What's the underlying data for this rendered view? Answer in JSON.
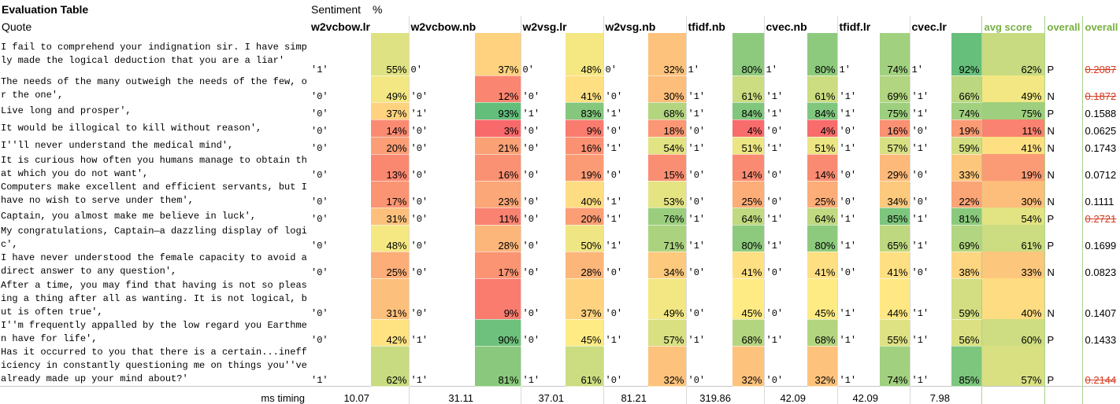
{
  "title": "Evaluation Table",
  "subheader": {
    "sentiment": "Sentiment",
    "percent": "%",
    "quote": "Quote"
  },
  "models": [
    "w2vcbow.lr",
    "w2vcbow.nb",
    "w2vsg.lr",
    "w2vsg.nb",
    "tfidf.nb",
    "cvec.nb",
    "tfidf.lr",
    "cvec.lr"
  ],
  "summary_headers": {
    "avg": "avg score",
    "overall_label": "overall",
    "overall_score": "overall"
  },
  "rows": [
    {
      "quote": "I fail to comprehend your indignation sir. I have simply made the logical deduction that you are a liar'",
      "cells": [
        [
          "'1'",
          "55%"
        ],
        [
          "0'",
          "37%"
        ],
        [
          "0'",
          "48%"
        ],
        [
          "0'",
          "32%"
        ],
        [
          "1'",
          "80%"
        ],
        [
          "1'",
          "80%"
        ],
        [
          "1'",
          "74%"
        ],
        [
          "1'",
          "92%"
        ]
      ],
      "avg": "62%",
      "overall": "P",
      "score": "0.2087",
      "red": true
    },
    {
      "quote": "The needs of the many outweigh the needs of the few, or the one',",
      "cells": [
        [
          "'0'",
          "49%"
        ],
        [
          "'0'",
          "12%"
        ],
        [
          "'0'",
          "41%"
        ],
        [
          "'0'",
          "30%"
        ],
        [
          "'1'",
          "61%"
        ],
        [
          "'1'",
          "61%"
        ],
        [
          "'1'",
          "69%"
        ],
        [
          "'1'",
          "66%"
        ]
      ],
      "avg": "49%",
      "overall": "N",
      "score": "0.1872",
      "red": true
    },
    {
      "quote": "Live long and prosper',",
      "cells": [
        [
          "'0'",
          "37%"
        ],
        [
          "'1'",
          "93%"
        ],
        [
          "'1'",
          "83%"
        ],
        [
          "'1'",
          "68%"
        ],
        [
          "'1'",
          "84%"
        ],
        [
          "'1'",
          "84%"
        ],
        [
          "'1'",
          "75%"
        ],
        [
          "'1'",
          "74%"
        ]
      ],
      "avg": "75%",
      "overall": "P",
      "score": "0.1588",
      "red": false
    },
    {
      "quote": "It would be illogical to kill without reason',",
      "cells": [
        [
          "'0'",
          "14%"
        ],
        [
          "'0'",
          "3%"
        ],
        [
          "'0'",
          "9%"
        ],
        [
          "'0'",
          "18%"
        ],
        [
          "'0'",
          "4%"
        ],
        [
          "'0'",
          "4%"
        ],
        [
          "'0'",
          "16%"
        ],
        [
          "'0'",
          "19%"
        ]
      ],
      "avg": "11%",
      "overall": "N",
      "score": "0.0625",
      "red": false
    },
    {
      "quote": "I''ll never understand the medical mind',",
      "cells": [
        [
          "'0'",
          "20%"
        ],
        [
          "'0'",
          "21%"
        ],
        [
          "'0'",
          "16%"
        ],
        [
          "'1'",
          "54%"
        ],
        [
          "'1'",
          "51%"
        ],
        [
          "'1'",
          "51%"
        ],
        [
          "'1'",
          "57%"
        ],
        [
          "'1'",
          "59%"
        ]
      ],
      "avg": "41%",
      "overall": "N",
      "score": "0.1743",
      "red": false
    },
    {
      "quote": "It is curious how often you humans manage to obtain that which you do not want',",
      "cells": [
        [
          "'0'",
          "13%"
        ],
        [
          "'0'",
          "16%"
        ],
        [
          "'0'",
          "19%"
        ],
        [
          "'0'",
          "15%"
        ],
        [
          "'0'",
          "14%"
        ],
        [
          "'0'",
          "14%"
        ],
        [
          "'0'",
          "29%"
        ],
        [
          "'0'",
          "33%"
        ]
      ],
      "avg": "19%",
      "overall": "N",
      "score": "0.0712",
      "red": false
    },
    {
      "quote": "Computers make excellent and efficient servants, but I have no wish to serve under them',",
      "cells": [
        [
          "'0'",
          "17%"
        ],
        [
          "'0'",
          "23%"
        ],
        [
          "'0'",
          "40%"
        ],
        [
          "'1'",
          "53%"
        ],
        [
          "'0'",
          "25%"
        ],
        [
          "'0'",
          "25%"
        ],
        [
          "'0'",
          "34%"
        ],
        [
          "'0'",
          "22%"
        ]
      ],
      "avg": "30%",
      "overall": "N",
      "score": "0.1111",
      "red": false
    },
    {
      "quote": "Captain, you almost make me believe in luck',",
      "cells": [
        [
          "'0'",
          "31%"
        ],
        [
          "'0'",
          "11%"
        ],
        [
          "'0'",
          "20%"
        ],
        [
          "'1'",
          "76%"
        ],
        [
          "'1'",
          "64%"
        ],
        [
          "'1'",
          "64%"
        ],
        [
          "'1'",
          "85%"
        ],
        [
          "'1'",
          "81%"
        ]
      ],
      "avg": "54%",
      "overall": "P",
      "score": "0.2721",
      "red": true
    },
    {
      "quote": "My congratulations, Captain—a dazzling display of logic',",
      "cells": [
        [
          "'0'",
          "48%"
        ],
        [
          "'0'",
          "28%"
        ],
        [
          "'0'",
          "50%"
        ],
        [
          "'1'",
          "71%"
        ],
        [
          "'1'",
          "80%"
        ],
        [
          "'1'",
          "80%"
        ],
        [
          "'1'",
          "65%"
        ],
        [
          "'1'",
          "69%"
        ]
      ],
      "avg": "61%",
      "overall": "P",
      "score": "0.1699",
      "red": false
    },
    {
      "quote": "I have never understood the female capacity to avoid a direct answer to any question',",
      "cells": [
        [
          "'0'",
          "25%"
        ],
        [
          "'0'",
          "17%"
        ],
        [
          "'0'",
          "28%"
        ],
        [
          "'0'",
          "34%"
        ],
        [
          "'0'",
          "41%"
        ],
        [
          "'0'",
          "41%"
        ],
        [
          "'0'",
          "41%"
        ],
        [
          "'0'",
          "38%"
        ]
      ],
      "avg": "33%",
      "overall": "N",
      "score": "0.0823",
      "red": false
    },
    {
      "quote": "After a time, you may find that having is not so pleasing a thing after all as wanting. It is not logical, but is often true',",
      "cells": [
        [
          "'0'",
          "31%"
        ],
        [
          "'0'",
          "9%"
        ],
        [
          "'0'",
          "37%"
        ],
        [
          "'0'",
          "49%"
        ],
        [
          "'0'",
          "45%"
        ],
        [
          "'0'",
          "45%"
        ],
        [
          "'1'",
          "44%"
        ],
        [
          "'1'",
          "59%"
        ]
      ],
      "avg": "40%",
      "overall": "N",
      "score": "0.1407",
      "red": false
    },
    {
      "quote": "I''m frequently appalled by the low regard you Earthmen have for life',",
      "cells": [
        [
          "'0'",
          "42%"
        ],
        [
          "'1'",
          "90%"
        ],
        [
          "'0'",
          "45%"
        ],
        [
          "'1'",
          "57%"
        ],
        [
          "'1'",
          "68%"
        ],
        [
          "'1'",
          "68%"
        ],
        [
          "'1'",
          "55%"
        ],
        [
          "'1'",
          "56%"
        ]
      ],
      "avg": "60%",
      "overall": "P",
      "score": "0.1433",
      "red": false
    },
    {
      "quote": "Has it occurred to you that there is a certain...inefficiency in constantly questioning me on things you''ve already made up your mind about?'",
      "cells": [
        [
          "'1'",
          "62%"
        ],
        [
          "'1'",
          "81%"
        ],
        [
          "'1'",
          "61%"
        ],
        [
          "'0'",
          "32%"
        ],
        [
          "'0'",
          "32%"
        ],
        [
          "'0'",
          "32%"
        ],
        [
          "'1'",
          "74%"
        ],
        [
          "'1'",
          "85%"
        ]
      ],
      "avg": "57%",
      "overall": "P",
      "score": "0.2144",
      "red": true
    }
  ],
  "timing": {
    "label": "ms timing",
    "values": [
      "10.07",
      "31.11",
      "37.01",
      "81.21",
      "319.86",
      "42.09",
      "42.09",
      "7.98"
    ]
  },
  "color_scale": {
    "low": "#f8696b",
    "mid": "#ffeb84",
    "high": "#63be7b"
  }
}
